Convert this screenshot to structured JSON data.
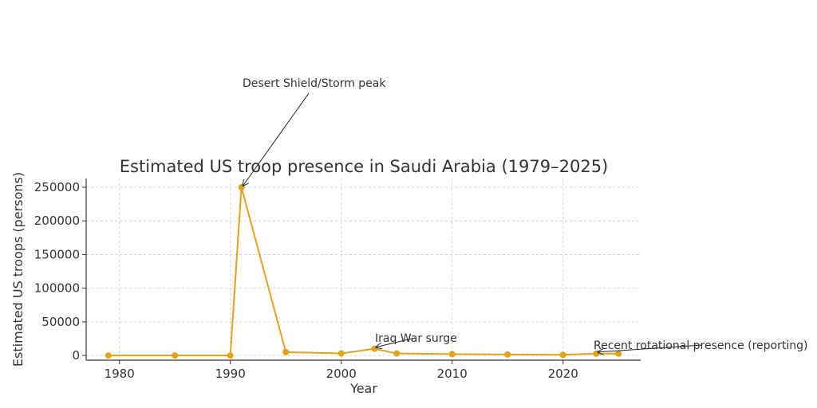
{
  "colors": {
    "series": "#E3A21A",
    "text": "#333333",
    "grid": "#cccccc"
  },
  "chart_data": {
    "type": "line",
    "title": "Estimated US troop presence in Saudi Arabia (1979–2025)",
    "xlabel": "Year",
    "ylabel": "Estimated US troops (persons)",
    "xlim": [
      1977,
      2027
    ],
    "ylim": [
      -7000,
      263000
    ],
    "x_ticks": [
      1980,
      1990,
      2000,
      2010,
      2020
    ],
    "y_ticks": [
      0,
      50000,
      100000,
      150000,
      200000,
      250000
    ],
    "grid": true,
    "legend": "none",
    "series": [
      {
        "x": [
          1979,
          1985,
          1990,
          1991,
          1995,
          2000,
          2003,
          2005,
          2010,
          2015,
          2020,
          2023,
          2025
        ],
        "values": [
          0,
          0,
          0,
          250000,
          5000,
          3000,
          10000,
          3000,
          2000,
          1500,
          1000,
          2700,
          2700
        ]
      }
    ],
    "annotations": [
      {
        "text": "Desert Shield/Storm peak",
        "x": 1991,
        "y": 250000
      },
      {
        "text": "Iraq War surge",
        "x": 2003,
        "y": 10000
      },
      {
        "text": "Recent rotational presence (reporting)",
        "x": 2023,
        "y": 2700
      }
    ]
  }
}
